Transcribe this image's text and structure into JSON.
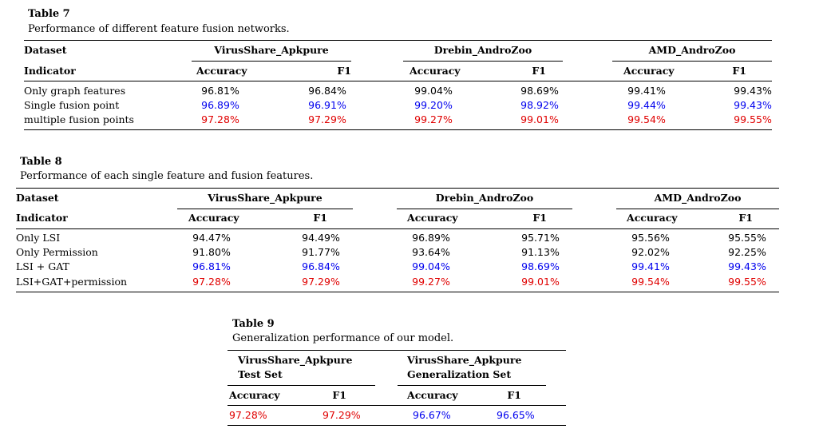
{
  "table7": {
    "title": "Table 7",
    "caption": "Performance of different feature fusion networks.",
    "dataset_label": "Dataset",
    "indicator_label": "Indicator",
    "groups": [
      "VirusShare_Apkpure",
      "Drebin_AndroZoo",
      "AMD_AndroZoo"
    ],
    "metrics": [
      "Accuracy",
      "F1"
    ],
    "rows": [
      {
        "label": "Only graph features",
        "values": [
          "96.81%",
          "96.84%",
          "99.04%",
          "98.69%",
          "99.41%",
          "99.43%"
        ],
        "color": "#000000"
      },
      {
        "label": "Single fusion point",
        "values": [
          "96.89%",
          "96.91%",
          "99.20%",
          "98.92%",
          "99.44%",
          "99.43%"
        ],
        "color": "#0000ee"
      },
      {
        "label": "multiple fusion points",
        "values": [
          "97.28%",
          "97.29%",
          "99.27%",
          "99.01%",
          "99.54%",
          "99.55%"
        ],
        "color": "#e00000"
      }
    ]
  },
  "table8": {
    "title": "Table 8",
    "caption": "Performance of each single feature and fusion features.",
    "dataset_label": "Dataset",
    "indicator_label": "Indicator",
    "groups": [
      "VirusShare_Apkpure",
      "Drebin_AndroZoo",
      "AMD_AndroZoo"
    ],
    "metrics": [
      "Accuracy",
      "F1"
    ],
    "rows": [
      {
        "label": "Only LSI",
        "values": [
          "94.47%",
          "94.49%",
          "96.89%",
          "95.71%",
          "95.56%",
          "95.55%"
        ],
        "color": "#000000"
      },
      {
        "label": "Only Permission",
        "values": [
          "91.80%",
          "91.77%",
          "93.64%",
          "91.13%",
          "92.02%",
          "92.25%"
        ],
        "color": "#000000"
      },
      {
        "label": "LSI + GAT",
        "values": [
          "96.81%",
          "96.84%",
          "99.04%",
          "98.69%",
          "99.41%",
          "99.43%"
        ],
        "color": "#0000ee"
      },
      {
        "label": "LSI+GAT+permission",
        "values": [
          "97.28%",
          "97.29%",
          "99.27%",
          "99.01%",
          "99.54%",
          "99.55%"
        ],
        "color": "#e00000"
      }
    ]
  },
  "table9": {
    "title": "Table 9",
    "caption": "Generalization performance of our model.",
    "group1_line1": "VirusShare_Apkpure",
    "group1_line2": "Test Set",
    "group2_line1": "VirusShare_Apkpure",
    "group2_line2": "Generalization Set",
    "metrics": [
      "Accuracy",
      "F1",
      "Accuracy",
      "F1"
    ],
    "values": [
      "97.28%",
      "97.29%",
      "96.67%",
      "96.65%"
    ],
    "colors": [
      "#e00000",
      "#e00000",
      "#0000ee",
      "#0000ee"
    ]
  }
}
